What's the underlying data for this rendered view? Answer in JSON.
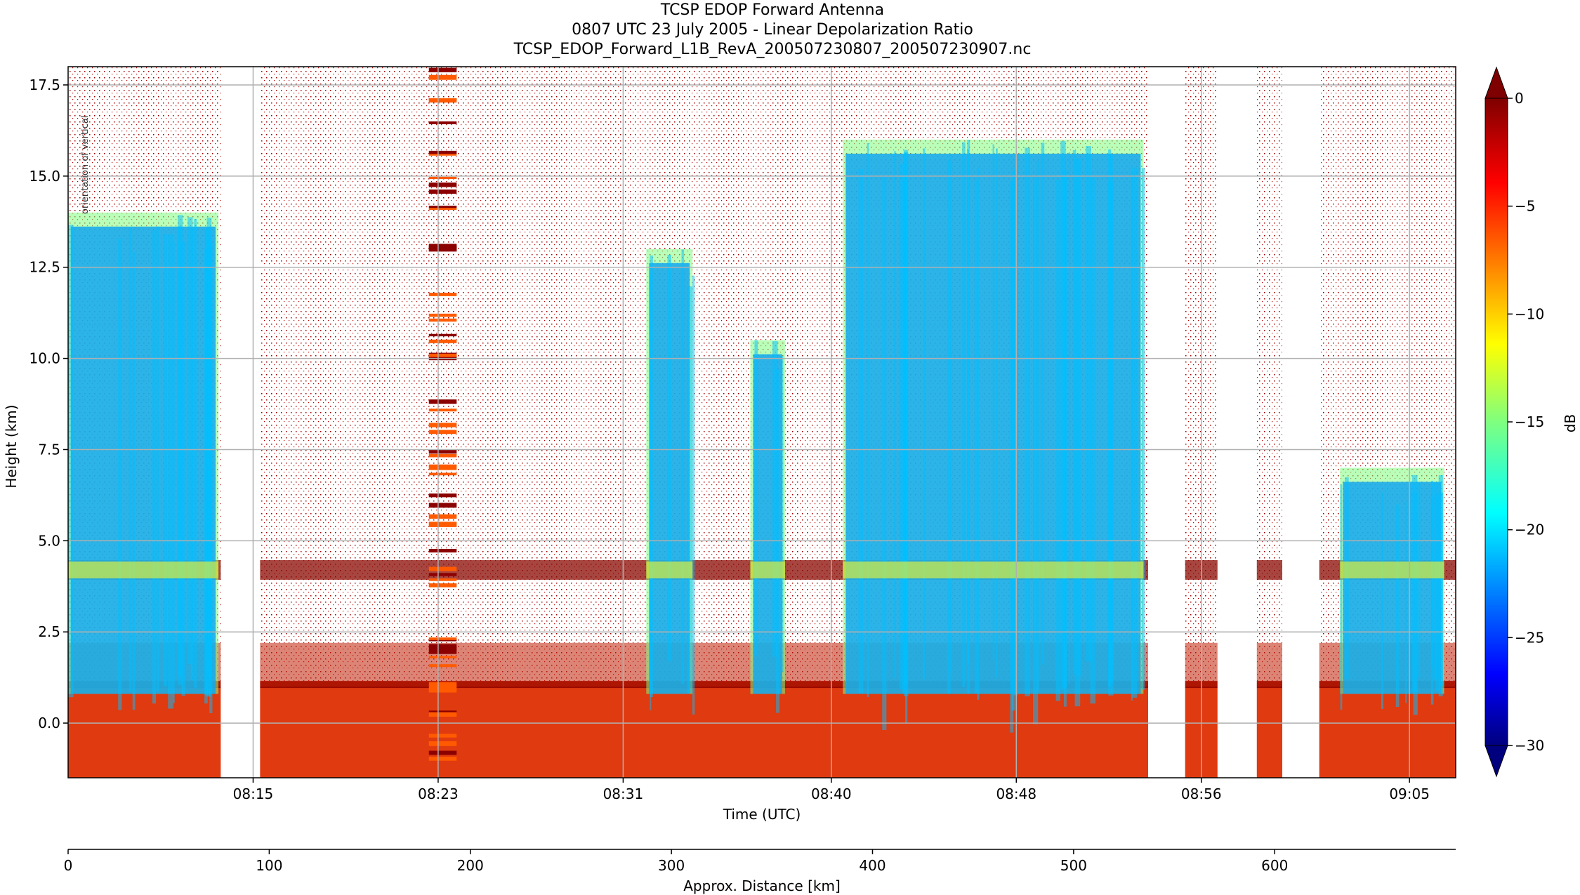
{
  "chart_data": {
    "type": "heatmap",
    "title_lines": [
      "TCSP EDOP Forward Antenna",
      "0807 UTC 23 July 2005 - Linear Depolarization Ratio",
      "TCSP_EDOP_Forward_L1B_RevA_200507230807_200507230907.nc"
    ],
    "xlabel": "Time (UTC)",
    "ylabel": "Height (km)",
    "x2label": "Approx. Distance [km]",
    "annotation": "orientation of vertical",
    "colorbar_label": "dB",
    "colormap": "jet",
    "x_range_minutes": [
      0,
      60
    ],
    "x_ticks": [
      {
        "label": "08:15",
        "min": 8
      },
      {
        "label": "08:23",
        "min": 16
      },
      {
        "label": "08:31",
        "min": 24
      },
      {
        "label": "08:40",
        "min": 33
      },
      {
        "label": "08:48",
        "min": 41
      },
      {
        "label": "08:56",
        "min": 49
      },
      {
        "label": "09:05",
        "min": 58
      }
    ],
    "ylim": [
      -1.5,
      18
    ],
    "y_ticks": [
      "0.0",
      "2.5",
      "5.0",
      "7.5",
      "10.0",
      "12.5",
      "15.0",
      "17.5"
    ],
    "y_tick_values": [
      0,
      2.5,
      5,
      7.5,
      10,
      12.5,
      15,
      17.5
    ],
    "distance_range_km": [
      0,
      690
    ],
    "distance_ticks": [
      0,
      100,
      200,
      300,
      400,
      500,
      600
    ],
    "colorbar_range": [
      -30,
      0
    ],
    "colorbar_ticks": [
      "0",
      "−5",
      "−10",
      "−15",
      "−20",
      "−25",
      "−30"
    ],
    "colorbar_tick_values": [
      0,
      -5,
      -10,
      -15,
      -20,
      -25,
      -30
    ],
    "data_gaps_minutes": [
      [
        6.6,
        8.3
      ],
      [
        46.7,
        48.3
      ],
      [
        49.7,
        51.4
      ],
      [
        52.5,
        54.1
      ]
    ],
    "melting_layer_km": 4.2,
    "surface_layer_top_km": 1.0,
    "deep_convection_minutes": [
      [
        0,
        6.5
      ],
      [
        25,
        27
      ],
      [
        29.5,
        31
      ],
      [
        33.5,
        46.5
      ],
      [
        55,
        59.5
      ]
    ]
  }
}
